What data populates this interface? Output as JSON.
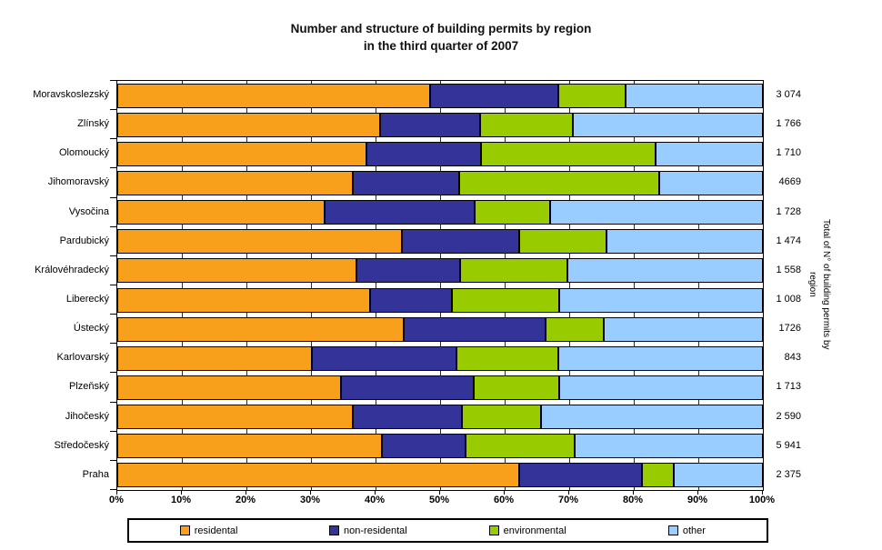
{
  "chart_data": {
    "type": "bar",
    "subtype": "horizontal-stacked-100pct",
    "title": {
      "line1": "Number and structure of building permits by region",
      "line2": "in the third quarter of 2007"
    },
    "categories": [
      "Moravskoslezský",
      "Zlínský",
      "Olomoucký",
      "Jihomoravský",
      "Vysočina",
      "Pardubický",
      "Královéhradecký",
      "Liberecký",
      "Ústecký",
      "Karlovarský",
      "Plzeňský",
      "Jihočeský",
      "Středočeský",
      "Praha"
    ],
    "totals": [
      "3 074",
      "1 766",
      "1 710",
      "4669",
      "1 728",
      "1 474",
      "1 558",
      "1 008",
      "1726",
      "843",
      "1 713",
      "2 590",
      "5 941",
      "2 375"
    ],
    "series": [
      {
        "name": "residental",
        "color": "#F89F1B",
        "values": [
          48.5,
          40.7,
          38.6,
          36.5,
          32.1,
          44.1,
          37.1,
          39.2,
          44.3,
          30.1,
          34.7,
          36.5,
          41.0,
          62.3
        ]
      },
      {
        "name": "non-residental",
        "color": "#333399",
        "values": [
          19.8,
          15.5,
          17.7,
          16.5,
          23.3,
          18.1,
          16.0,
          12.6,
          22.1,
          22.5,
          20.5,
          16.9,
          12.9,
          18.9
        ]
      },
      {
        "name": "environmental",
        "color": "#99CC00",
        "values": [
          10.5,
          14.4,
          27.1,
          31.0,
          11.7,
          13.6,
          16.6,
          16.7,
          9.0,
          15.7,
          13.2,
          12.3,
          16.9,
          5.0
        ]
      },
      {
        "name": "other",
        "color": "#99CCFF",
        "values": [
          21.2,
          29.4,
          16.6,
          16.0,
          32.9,
          24.2,
          30.3,
          31.5,
          24.6,
          31.7,
          31.6,
          34.3,
          29.2,
          13.8
        ]
      }
    ],
    "x_ticks": [
      "0%",
      "10%",
      "20%",
      "30%",
      "40%",
      "50%",
      "60%",
      "70%",
      "80%",
      "90%",
      "100%"
    ],
    "x_range": [
      0,
      100
    ],
    "grid": "major-vertical",
    "legend_position": "bottom",
    "right_axis_label": {
      "line1": "Total of N° of building permits by",
      "line2": "region"
    }
  }
}
